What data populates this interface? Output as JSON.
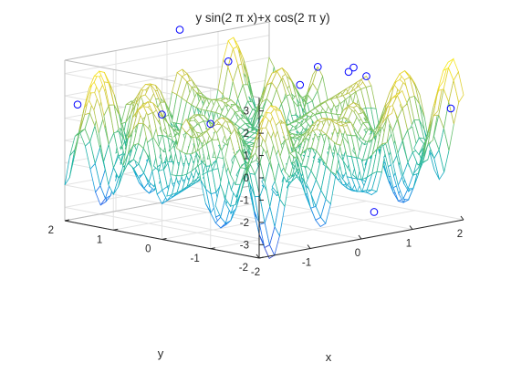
{
  "chart_data": {
    "type": "mesh-3d",
    "title": "y sin(2 π x)+x cos(2 π y)",
    "function": "y*sin(2*pi*x) + x*cos(2*pi*y)",
    "xlabel": "x",
    "ylabel": "y",
    "zlabel": "",
    "xlim": [
      -2,
      2
    ],
    "ylim": [
      -2,
      2
    ],
    "zlim": [
      -3.6,
      3.6
    ],
    "xticks": [
      -2,
      -1,
      0,
      1,
      2
    ],
    "yticks": [
      -2,
      -1,
      0,
      1,
      2
    ],
    "zticks": [
      -3,
      -2,
      -1,
      0,
      1,
      2,
      3
    ],
    "grid_step": 0.1,
    "grid": true,
    "colormap": [
      "#3e26a8",
      "#2b6ff0",
      "#14a5d6",
      "#22b6a0",
      "#67c06a",
      "#c5c241",
      "#f5de2a",
      "#f9fb15"
    ],
    "markers": {
      "style": "circle",
      "color": "#0000ff",
      "points": [
        {
          "x": 0.25,
          "y": 2,
          "z": 4
        },
        {
          "x": -0.25,
          "y": -2,
          "z": 4
        },
        {
          "x": 2,
          "y": 0,
          "z": 2
        },
        {
          "x": -2,
          "y": 0,
          "z": 2
        },
        {
          "x": 1.75,
          "y": -2,
          "z": 1.5
        },
        {
          "x": -1.75,
          "y": 2,
          "z": 1.5
        },
        {
          "x": 0.25,
          "y": -2,
          "z": -2.5
        },
        {
          "x": 2,
          "y": 1,
          "z": 2
        },
        {
          "x": -2,
          "y": -1,
          "z": 2
        },
        {
          "x": 0.25,
          "y": 1,
          "z": 3
        },
        {
          "x": -0.25,
          "y": -1,
          "z": 3
        },
        {
          "x": 1.75,
          "y": 0,
          "z": 2.5
        }
      ]
    }
  }
}
